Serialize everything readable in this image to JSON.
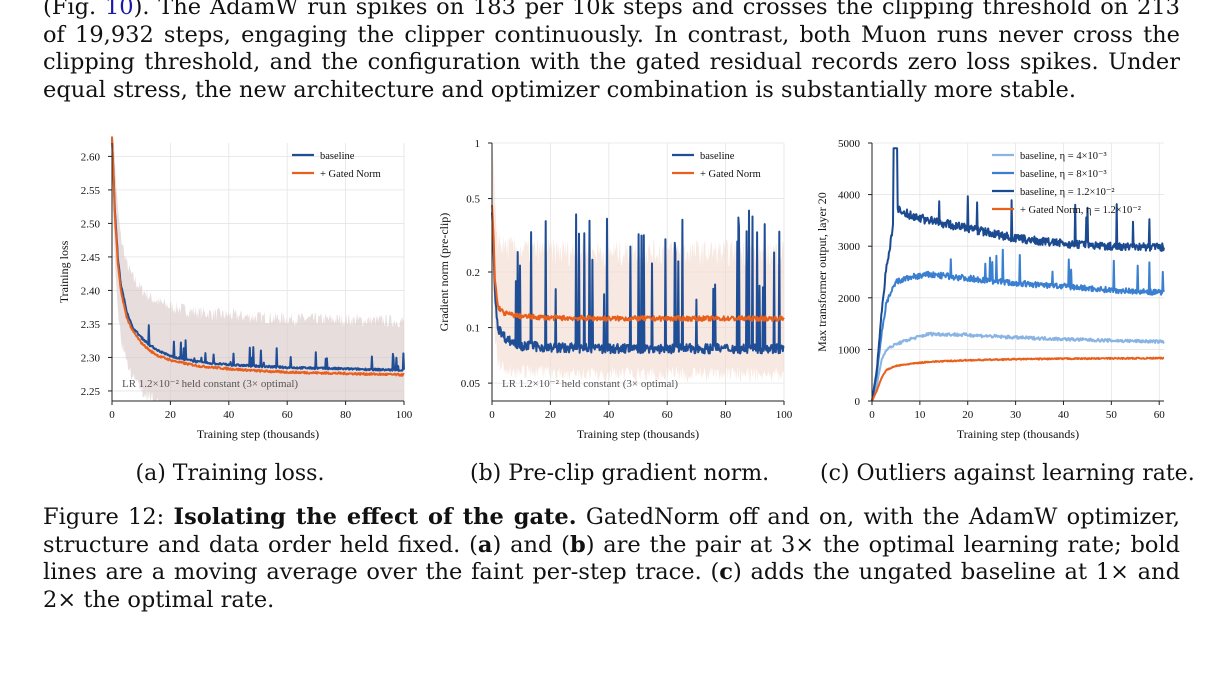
{
  "paragraph": {
    "p1": "(Fig. ",
    "ref": "10",
    "p2": "). The AdamW run spikes on 183 per 10k steps and crosses the clipping threshold on 213 of 19,932 steps, engaging the clipper continuously. In contrast, both Muon runs never cross the clipping threshold, and the configuration with the gated residual records zero loss spikes. Under equal stress, the new architecture and optimizer combination is substantially more stable."
  },
  "colors": {
    "baseline": "#1f4e96",
    "gated": "#e8601c",
    "band": "#d9c6c6",
    "eta4": "#8ab4e3",
    "eta8": "#3a7fd0",
    "eta12": "#1c4a91"
  },
  "chart_data": [
    {
      "type": "line",
      "xlabel": "Training step (thousands)",
      "ylabel": "Training loss",
      "xlim": [
        0,
        100
      ],
      "ylim": [
        2.235,
        2.62
      ],
      "xticks": [
        "0",
        "20",
        "40",
        "60",
        "80",
        "100"
      ],
      "yticks": [
        "2.25",
        "2.30",
        "2.35",
        "2.40",
        "2.45",
        "2.50",
        "2.55",
        "2.60"
      ],
      "annotation": "LR 1.2×10⁻² held constant (3× optimal)",
      "legend": "top-right",
      "grid": true,
      "series": [
        {
          "name": "baseline",
          "x": [
            0,
            1,
            2,
            3,
            5,
            7,
            10,
            13,
            16,
            20,
            25,
            30,
            40,
            50,
            60,
            70,
            80,
            90,
            100
          ],
          "values": [
            2.63,
            2.52,
            2.45,
            2.41,
            2.37,
            2.345,
            2.33,
            2.318,
            2.31,
            2.302,
            2.297,
            2.293,
            2.289,
            2.287,
            2.285,
            2.284,
            2.283,
            2.282,
            2.281
          ]
        },
        {
          "name": "+ Gated Norm",
          "x": [
            0,
            1,
            2,
            3,
            5,
            7,
            10,
            13,
            16,
            20,
            25,
            30,
            40,
            50,
            60,
            70,
            80,
            90,
            100
          ],
          "values": [
            2.63,
            2.51,
            2.44,
            2.4,
            2.36,
            2.34,
            2.322,
            2.31,
            2.302,
            2.296,
            2.291,
            2.287,
            2.283,
            2.28,
            2.278,
            2.277,
            2.276,
            2.275,
            2.274
          ]
        }
      ]
    },
    {
      "type": "line",
      "xlabel": "Training step (thousands)",
      "ylabel": "Gradient norm (pre-clip)",
      "xlim": [
        0,
        100
      ],
      "ylim": [
        0.04,
        1.0
      ],
      "yscale": "log",
      "xticks": [
        "0",
        "20",
        "40",
        "60",
        "80",
        "100"
      ],
      "yticks": [
        "0.05",
        "0.1",
        "0.2",
        "0.5",
        "1"
      ],
      "annotation": "LR 1.2×10⁻² held constant (3× optimal)",
      "legend": "top-right",
      "grid": true,
      "series": [
        {
          "name": "baseline",
          "x": [
            0,
            1,
            2,
            4,
            6,
            10,
            20,
            40,
            60,
            80,
            100
          ],
          "values": [
            0.4,
            0.15,
            0.1,
            0.09,
            0.085,
            0.08,
            0.078,
            0.077,
            0.077,
            0.077,
            0.077
          ]
        },
        {
          "name": "+ Gated Norm",
          "x": [
            0,
            1,
            2,
            4,
            6,
            10,
            20,
            40,
            60,
            80,
            100
          ],
          "values": [
            0.45,
            0.18,
            0.13,
            0.12,
            0.118,
            0.115,
            0.113,
            0.112,
            0.112,
            0.112,
            0.112
          ]
        }
      ]
    },
    {
      "type": "line",
      "xlabel": "Training step (thousands)",
      "ylabel": "Max transformer output, layer 20",
      "xlim": [
        0,
        61
      ],
      "ylim": [
        0,
        5000
      ],
      "xticks": [
        "0",
        "10",
        "20",
        "30",
        "40",
        "50",
        "60"
      ],
      "yticks": [
        "0",
        "1000",
        "2000",
        "3000",
        "4000",
        "5000"
      ],
      "legend": "top-right",
      "grid": true,
      "series": [
        {
          "name": "baseline, η = 4×10⁻³",
          "x": [
            0,
            1,
            2,
            3,
            5,
            8,
            12,
            20,
            30,
            40,
            50,
            61
          ],
          "values": [
            0,
            300,
            800,
            1000,
            1100,
            1200,
            1300,
            1280,
            1230,
            1200,
            1170,
            1150
          ]
        },
        {
          "name": "baseline, η = 8×10⁻³",
          "x": [
            0,
            1,
            2,
            3,
            5,
            8,
            12,
            20,
            30,
            40,
            50,
            61
          ],
          "values": [
            0,
            500,
            1300,
            1900,
            2300,
            2400,
            2450,
            2380,
            2280,
            2220,
            2150,
            2100
          ]
        },
        {
          "name": "baseline, η = 1.2×10⁻²",
          "x": [
            0,
            1,
            2,
            3,
            5,
            8,
            12,
            20,
            30,
            40,
            50,
            61
          ],
          "values": [
            0,
            600,
            1700,
            2600,
            3700,
            3600,
            3500,
            3350,
            3150,
            3050,
            3000,
            2980
          ]
        },
        {
          "name": "+ Gated Norm, η = 1.2×10⁻²",
          "x": [
            0,
            1,
            2,
            3,
            5,
            8,
            12,
            20,
            30,
            40,
            50,
            61
          ],
          "values": [
            0,
            200,
            450,
            600,
            680,
            720,
            760,
            790,
            810,
            820,
            825,
            830
          ]
        }
      ]
    }
  ],
  "subcaptions": [
    "(a) Training loss.",
    "(b) Pre-clip gradient norm.",
    "(c) Outliers against learning rate."
  ],
  "figcaption": {
    "label": "Figure 12: ",
    "bold": "Isolating the effect of the gate.",
    "t1": " GatedNorm off and on, with the AdamW optimizer, structure and data order held fixed. (",
    "a": "a",
    "t2": ") and (",
    "b": "b",
    "t3": ") are the pair at 3× the optimal learning rate; bold lines are a moving average over the faint per-step trace. (",
    "c": "c",
    "t4": ") adds the ungated baseline at 1× and 2× the optimal rate."
  }
}
